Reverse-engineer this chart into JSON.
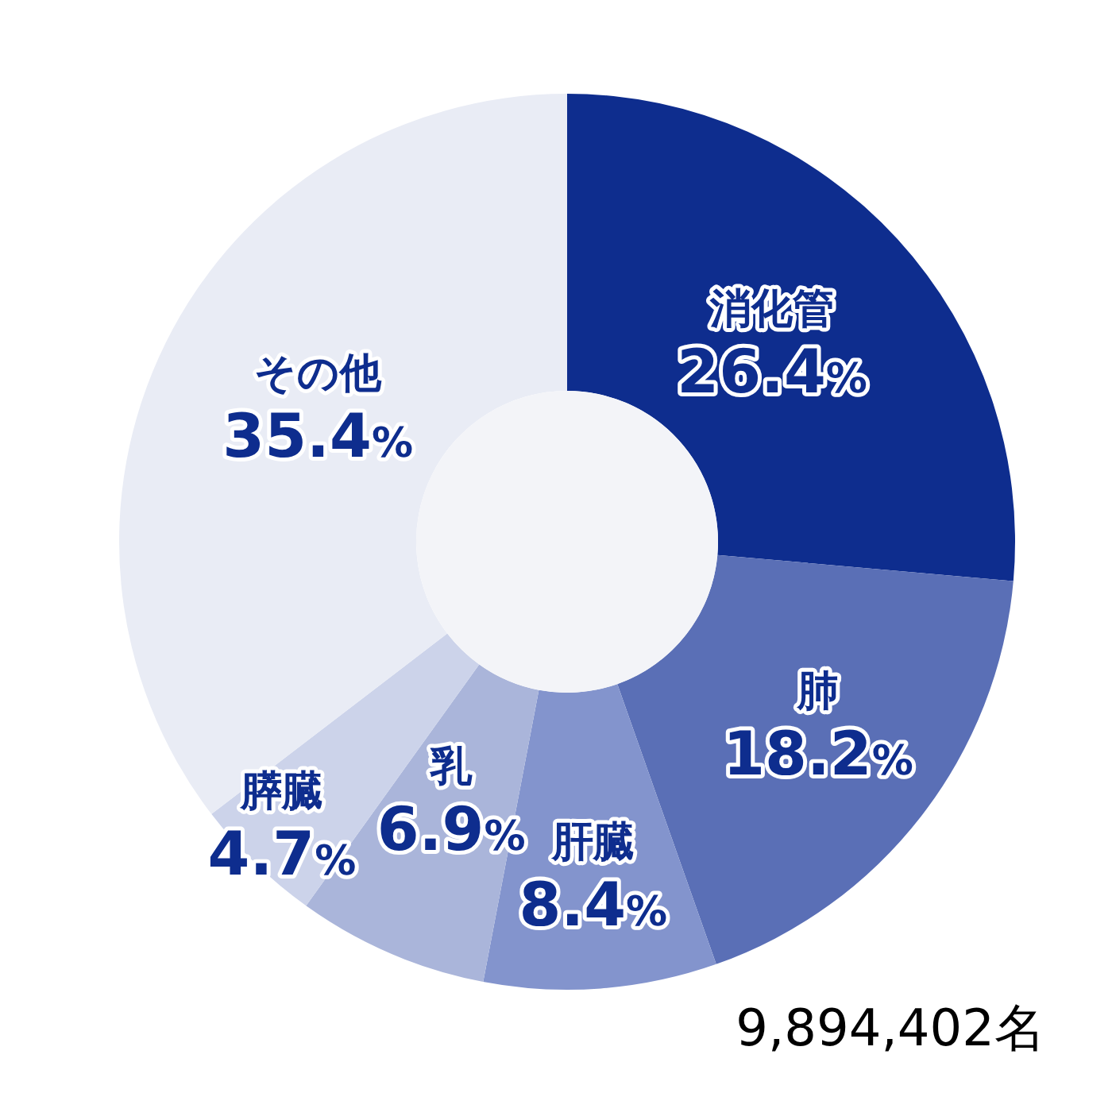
{
  "chart_data": {
    "type": "donut",
    "categories": [
      "消化管",
      "肺",
      "肝臓",
      "乳",
      "膵臓",
      "その他"
    ],
    "values": [
      26.4,
      18.2,
      8.4,
      6.9,
      4.7,
      35.4
    ],
    "colors": [
      "#0e2d8e",
      "#5a6fb6",
      "#8394cd",
      "#aab5da",
      "#ccd3ea",
      "#e9ecf5"
    ],
    "value_labels": [
      "26.4%",
      "18.2%",
      "8.4%",
      "6.9%",
      "4.7%",
      "35.4%"
    ],
    "annotations": [
      "9,894,402名"
    ]
  }
}
